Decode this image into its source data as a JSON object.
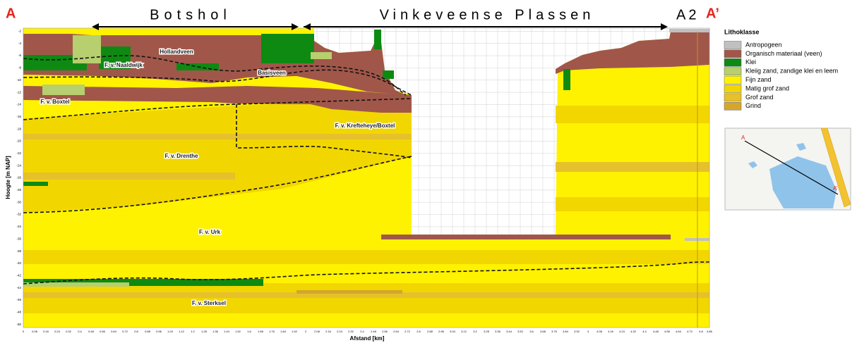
{
  "chart_data": {
    "type": "cross-section",
    "section_labels": {
      "start": "A",
      "botshol": "Botshol",
      "vinkeveen": "Vinkeveense Plassen",
      "a2": "A2",
      "end": "A’"
    },
    "y_label": "Hoogte [m NAP]",
    "x_label": "Afstand [km]",
    "ylim": [
      -50.5,
      -1.5
    ],
    "yticks": [
      -2,
      -4,
      -6,
      -8,
      -10,
      -12,
      -14,
      -16,
      -18,
      -20,
      -22,
      -24,
      -26,
      -28,
      -30,
      -32,
      -34,
      -36,
      -38,
      -40,
      -42,
      -44,
      -46,
      -48,
      -50
    ],
    "xlim": [
      0,
      4.86
    ],
    "xticks": [
      0,
      0.08,
      0.16,
      0.24,
      0.32,
      0.4,
      0.48,
      0.56,
      0.64,
      0.72,
      0.8,
      0.88,
      0.96,
      1.04,
      1.12,
      1.2,
      1.28,
      1.36,
      1.44,
      1.52,
      1.6,
      1.68,
      1.76,
      1.84,
      1.92,
      2,
      2.08,
      2.16,
      2.24,
      2.32,
      2.4,
      2.48,
      2.56,
      2.64,
      2.72,
      2.8,
      2.88,
      2.96,
      3.04,
      3.12,
      3.2,
      3.28,
      3.36,
      3.44,
      3.52,
      3.6,
      3.68,
      3.76,
      3.84,
      3.92,
      4,
      4.08,
      4.16,
      4.24,
      4.32,
      4.4,
      4.48,
      4.56,
      4.64,
      4.72,
      4.8,
      4.86
    ],
    "grid": true,
    "legend_title": "Lithoklasse",
    "legend": [
      {
        "name": "Antropogeen",
        "color": "#c0c0c0"
      },
      {
        "name": "Organisch materiaal (veen)",
        "color": "#a0574a"
      },
      {
        "name": "Klei",
        "color": "#0e8a12"
      },
      {
        "name": "Kleiig zand, zandige klei en leem",
        "color": "#b7cf6e"
      },
      {
        "name": "Fijn zand",
        "color": "#fff200"
      },
      {
        "name": "Matig grof zand",
        "color": "#f2d600"
      },
      {
        "name": "Grof zand",
        "color": "#e6c12c"
      },
      {
        "name": "Grind",
        "color": "#d5a62c"
      }
    ],
    "annotations": [
      "Hollandveen",
      "F. v. Naaldwijk",
      "Basisveen",
      "F. v. Boxtel",
      "F. v. Krefteheye/Boxtel",
      "F. v. Drenthe",
      "F. v. Urk",
      "F. v. Sterksel"
    ],
    "inset_labels": [
      "A",
      "A’"
    ]
  }
}
